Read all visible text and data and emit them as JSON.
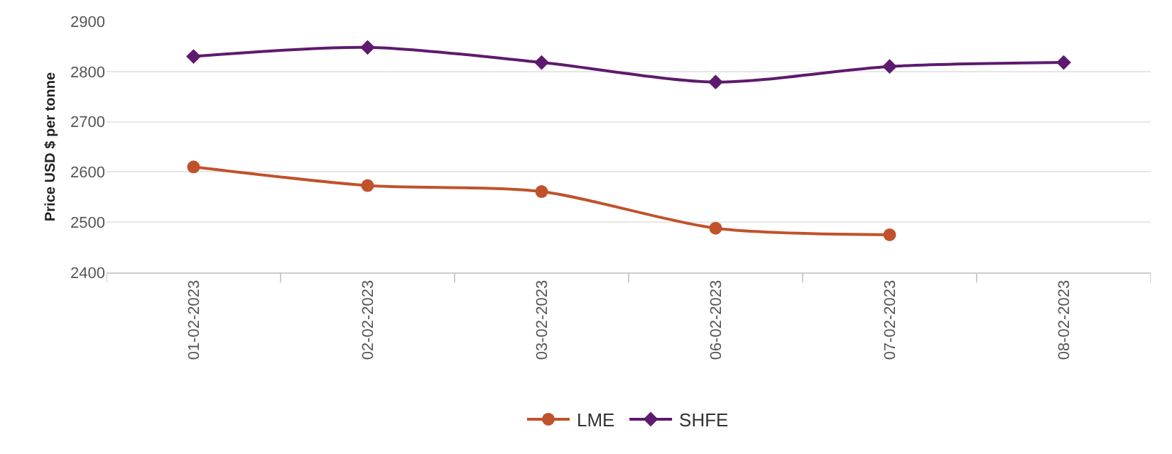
{
  "chart_data": {
    "type": "line",
    "ylabel": "Price USD $ per tonne",
    "categories": [
      "01-02-2023",
      "02-02-2023",
      "03-02-2023",
      "06-02-2023",
      "07-02-2023",
      "08-02-2023"
    ],
    "series": [
      {
        "name": "LME",
        "color": "#c0522b",
        "marker": "circle",
        "values": [
          2610,
          2573,
          2561,
          2488,
          2475,
          null
        ]
      },
      {
        "name": "SHFE",
        "color": "#5e1a6e",
        "marker": "diamond",
        "values": [
          2830,
          2848,
          2818,
          2779,
          2810,
          2818
        ]
      }
    ],
    "ylim": [
      2400,
      2900
    ],
    "yticks": [
      2400,
      2500,
      2600,
      2700,
      2800,
      2900
    ],
    "grid": "y",
    "legend": "bottom"
  }
}
